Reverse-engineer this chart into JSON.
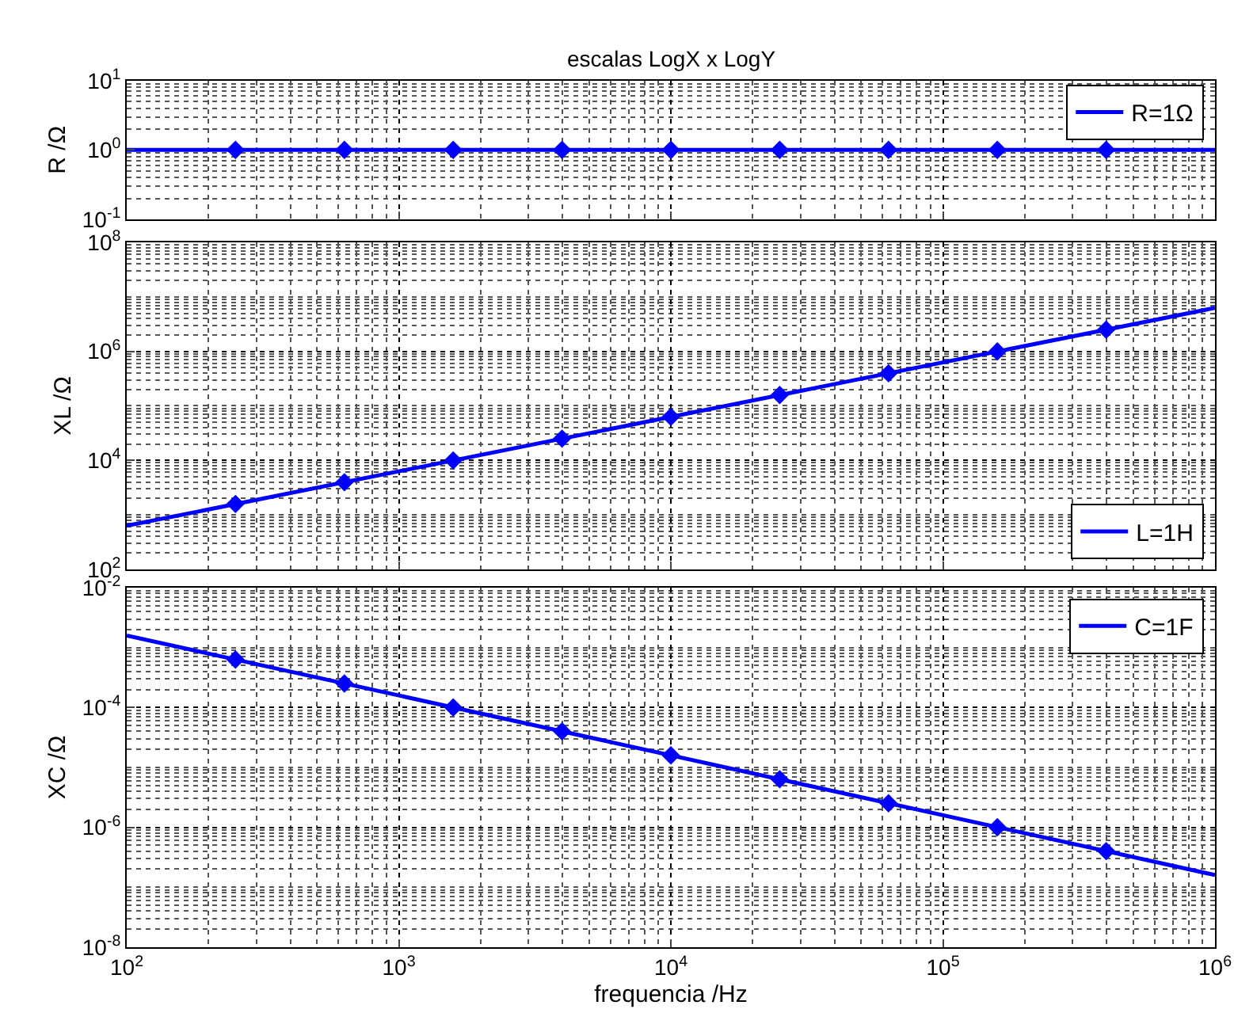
{
  "chart_data": [
    {
      "type": "line",
      "title": "escalas LogX x LogY",
      "ylabel": "R /Ω",
      "log": "xy",
      "grid": true,
      "legend": "top right",
      "tick_labels": "y",
      "xlim": [
        100,
        1000000
      ],
      "ylim": [
        0.1,
        10
      ],
      "yticks": [
        {
          "value": 0.1,
          "label": "10$^{-1}$"
        },
        {
          "value": 1,
          "label": "10$^{0}$"
        },
        {
          "value": 10,
          "label": "10$^{1}$"
        }
      ],
      "series": [
        {
          "name": "R=1Ω",
          "color": "#0000ff",
          "marker": "none",
          "x": [
            100,
            1000000
          ],
          "values": [
            1,
            1
          ]
        },
        {
          "type": "scatter",
          "color": "#0000ff",
          "marker": "diamond",
          "x": [
            251,
            631,
            1585,
            3981,
            10000,
            25119,
            63096,
            158489,
            398107
          ],
          "values": [
            1,
            1,
            1,
            1,
            1,
            1,
            1,
            1,
            1
          ]
        }
      ]
    },
    {
      "type": "line",
      "ylabel": "XL /Ω",
      "log": "xy",
      "grid": true,
      "legend": "bottom right",
      "tick_labels": "y",
      "xlim": [
        100,
        1000000
      ],
      "ylim": [
        100,
        100000000
      ],
      "yticks": [
        {
          "value": 100,
          "label": "10$^{2}$"
        },
        {
          "value": 10000,
          "label": "10$^{4}$"
        },
        {
          "value": 1000000,
          "label": "10$^{6}$"
        },
        {
          "value": 100000000,
          "label": "10$^{8}$"
        }
      ],
      "series": [
        {
          "name": "L=1H",
          "color": "#0000ff",
          "marker": "none",
          "x": [
            100,
            1000000
          ],
          "values": [
            628,
            6280000
          ]
        },
        {
          "type": "scatter",
          "color": "#0000ff",
          "marker": "diamond",
          "x": [
            251,
            631,
            1585,
            3981,
            10000,
            25119,
            63096,
            158489,
            398107
          ],
          "values": [
            1580,
            3960,
            9960,
            25000,
            62800,
            158000,
            396000,
            996000,
            2500000
          ]
        }
      ]
    },
    {
      "type": "line",
      "ylabel": "XC /Ω",
      "xlabel": "frequencia /Hz",
      "log": "xy",
      "grid": true,
      "legend": "top right",
      "xlim": [
        100,
        1000000
      ],
      "xticks": [
        {
          "value": 100,
          "label": "10$^{2}$"
        },
        {
          "value": 1000,
          "label": "10$^{3}$"
        },
        {
          "value": 10000,
          "label": "10$^{4}$"
        },
        {
          "value": 100000,
          "label": "10$^{5}$"
        },
        {
          "value": 1000000,
          "label": "10$^{6}$"
        }
      ],
      "ylim": [
        1e-08,
        0.01
      ],
      "yticks": [
        {
          "value": 1e-08,
          "label": "10$^{-8}$"
        },
        {
          "value": 1e-06,
          "label": "10$^{-6}$"
        },
        {
          "value": 0.0001,
          "label": "10$^{-4}$"
        },
        {
          "value": 0.01,
          "label": "10$^{-2}$"
        }
      ],
      "series": [
        {
          "name": "C=1F",
          "color": "#0000ff",
          "marker": "none",
          "x": [
            100,
            1000000
          ],
          "values": [
            0.00159,
            1.59e-07
          ]
        },
        {
          "type": "scatter",
          "color": "#0000ff",
          "marker": "diamond",
          "x": [
            251,
            631,
            1585,
            3981,
            10000,
            25119,
            63096,
            158489,
            398107
          ],
          "values": [
            0.000634,
            0.000252,
            0.0001,
            4e-05,
            1.59e-05,
            6.34e-06,
            2.52e-06,
            1e-06,
            4e-07
          ]
        }
      ]
    }
  ]
}
